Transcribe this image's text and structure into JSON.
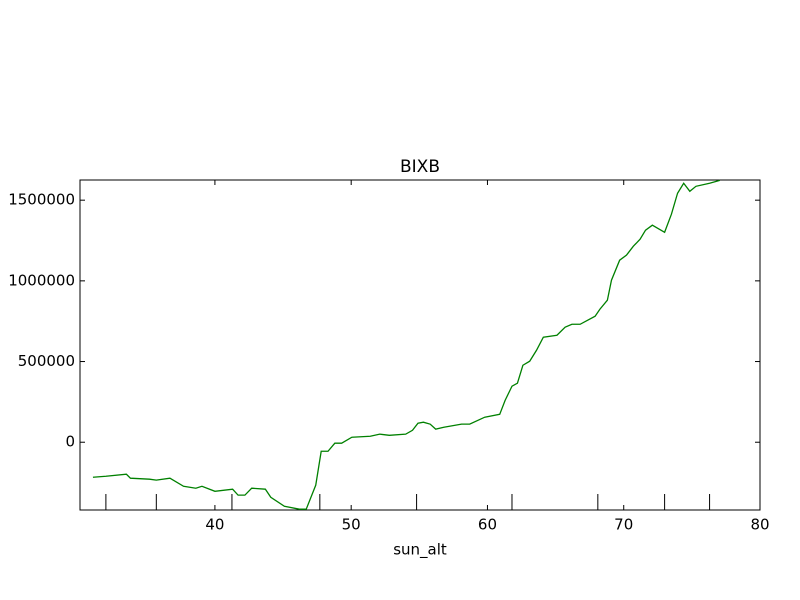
{
  "chart_data": {
    "type": "line",
    "title": "BIXB",
    "x_label": "sun_alt",
    "x": [
      31.05,
      32.0,
      33.5,
      33.8,
      35.2,
      35.7,
      36.7,
      37.7,
      38.6,
      39.05,
      40.0,
      41.3,
      41.7,
      42.2,
      42.7,
      43.7,
      44.1,
      45.1,
      46.2,
      46.7,
      47.4,
      47.8,
      48.3,
      48.8,
      49.3,
      50.05,
      51.4,
      52.1,
      52.8,
      54.0,
      54.5,
      54.9,
      55.3,
      55.8,
      56.2,
      56.8,
      58.1,
      58.7,
      59.8,
      60.9,
      61.3,
      61.8,
      62.2,
      62.6,
      63.1,
      63.6,
      64.1,
      65.1,
      65.7,
      66.2,
      66.8,
      67.9,
      68.25,
      68.8,
      69.1,
      69.7,
      70.2,
      70.7,
      71.2,
      71.6,
      72.1,
      73.0,
      73.5,
      73.95,
      74.4,
      74.85,
      75.3,
      76.3,
      77.05
    ],
    "series": [
      {
        "color": "#008000",
        "values": [
          -217000,
          -211000,
          -198000,
          -223000,
          -229000,
          -235000,
          -223000,
          -273000,
          -285000,
          -273000,
          -304000,
          -291000,
          -328000,
          -328000,
          -285000,
          -291000,
          -341000,
          -397000,
          -415000,
          -415000,
          -266000,
          -56000,
          -56000,
          -6000,
          -6000,
          31000,
          37000,
          50000,
          43000,
          50000,
          74000,
          118000,
          124000,
          112000,
          81000,
          93000,
          112000,
          112000,
          155000,
          173000,
          260000,
          347000,
          366000,
          477000,
          502000,
          570000,
          651000,
          663000,
          713000,
          731000,
          731000,
          781000,
          824000,
          880000,
          1004000,
          1128000,
          1159000,
          1214000,
          1258000,
          1314000,
          1345000,
          1301000,
          1413000,
          1543000,
          1605000,
          1555000,
          1586000,
          1605000,
          1623000
        ]
      }
    ],
    "vlines": [
      32.0,
      35.7,
      41.25,
      47.7,
      54.8,
      61.8,
      68.1,
      73.0,
      76.3
    ],
    "xlim": [
      30.1,
      80
    ],
    "xticks": [
      40,
      50,
      60,
      70,
      80
    ],
    "ylim": [
      -420000,
      1625000
    ],
    "yticks": [
      0,
      500000,
      1000000,
      1500000
    ],
    "grid": false
  }
}
